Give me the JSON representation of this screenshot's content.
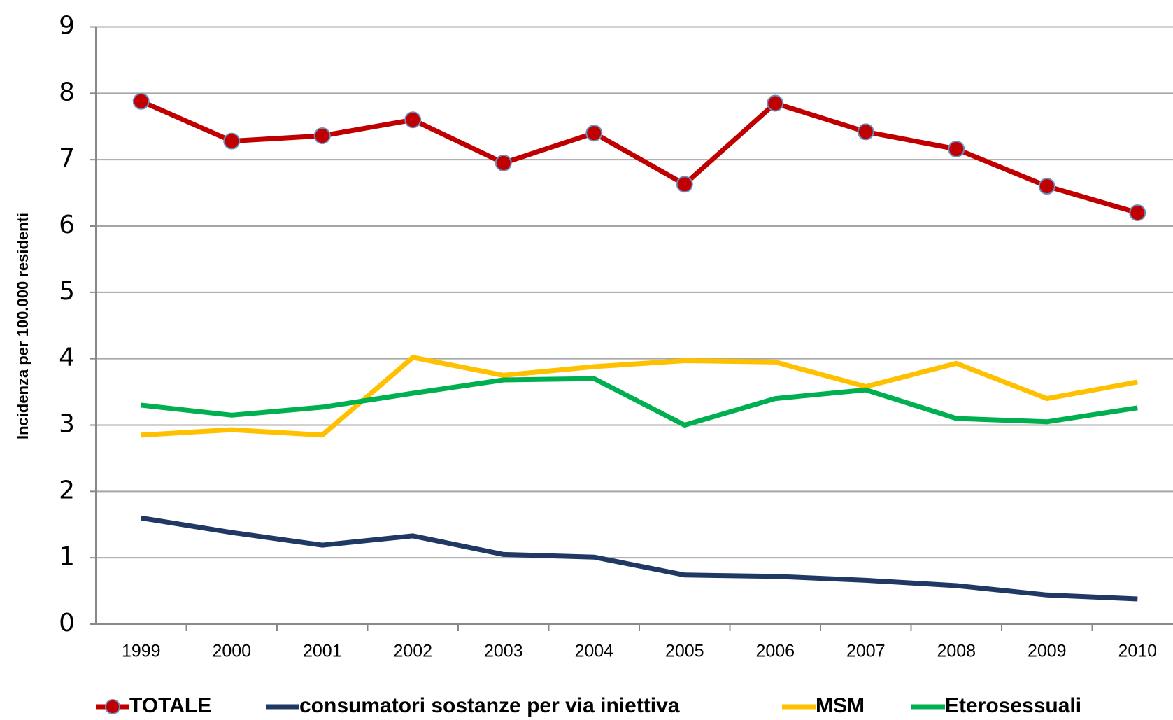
{
  "chart_data": {
    "type": "line",
    "y_label": "Incidenza per 100.000 residenti",
    "categories": [
      "1999",
      "2000",
      "2001",
      "2002",
      "2003",
      "2004",
      "2005",
      "2006",
      "2007",
      "2008",
      "2009",
      "2010"
    ],
    "series": [
      {
        "name": "TOTALE",
        "color": "#c00000",
        "markers": true,
        "values": [
          7.88,
          7.28,
          7.36,
          7.6,
          6.95,
          7.4,
          6.63,
          7.85,
          7.42,
          7.16,
          6.6,
          6.2
        ]
      },
      {
        "name": "consumatori sostanze per via iniettiva",
        "color": "#1f3864",
        "markers": false,
        "values": [
          1.6,
          1.38,
          1.19,
          1.33,
          1.05,
          1.01,
          0.74,
          0.72,
          0.66,
          0.58,
          0.44,
          0.38
        ]
      },
      {
        "name": "MSM",
        "color": "#ffc000",
        "markers": false,
        "values": [
          2.85,
          2.93,
          2.85,
          4.02,
          3.75,
          3.88,
          3.97,
          3.95,
          3.58,
          3.93,
          3.4,
          3.65
        ]
      },
      {
        "name": "Eterosessuali",
        "color": "#00b050",
        "markers": false,
        "values": [
          3.3,
          3.15,
          3.27,
          3.48,
          3.68,
          3.7,
          3.0,
          3.4,
          3.53,
          3.1,
          3.05,
          3.26
        ]
      }
    ],
    "ylim": [
      0,
      9
    ],
    "yticks": [
      0,
      1,
      2,
      3,
      4,
      5,
      6,
      7,
      8,
      9
    ],
    "grid": true,
    "legend": "bottom"
  }
}
